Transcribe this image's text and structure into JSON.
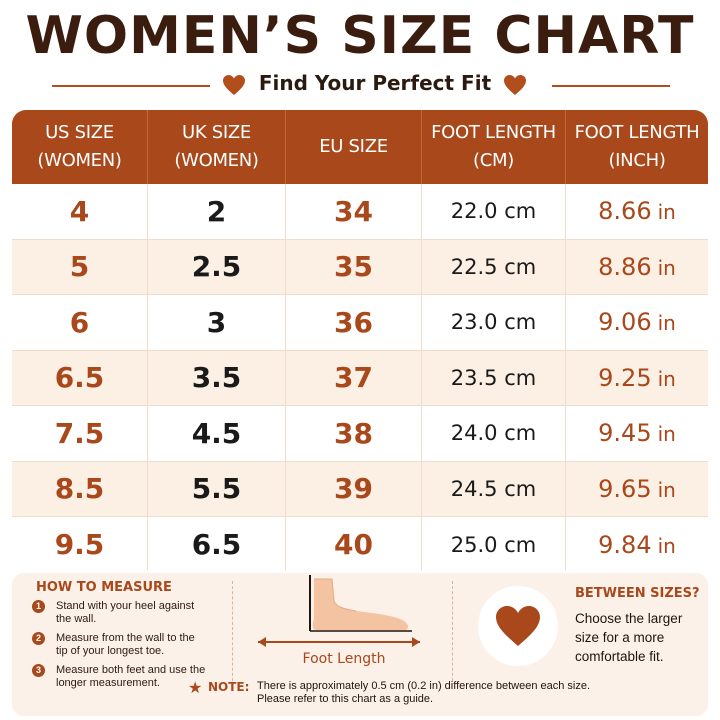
{
  "title": "WOMEN’S SIZE CHART",
  "subtitle": "Find Your Perfect Fit",
  "colors": {
    "accent": "#a8481b",
    "dark": "#3a1d0e",
    "row_alt": "#fcefe4",
    "panel": "#fcf1e8"
  },
  "table": {
    "headers": [
      "US SIZE\n(WOMEN)",
      "UK SIZE\n(WOMEN)",
      "EU SIZE",
      "FOOT LENGTH\n(CM)",
      "FOOT LENGTH\n(INCH)"
    ],
    "rows": [
      {
        "us": "4",
        "uk": "2",
        "eu": "34",
        "cm": "22.0 cm",
        "inch": "8.66",
        "inch_unit": "in"
      },
      {
        "us": "5",
        "uk": "2.5",
        "eu": "35",
        "cm": "22.5 cm",
        "inch": "8.86",
        "inch_unit": "in"
      },
      {
        "us": "6",
        "uk": "3",
        "eu": "36",
        "cm": "23.0 cm",
        "inch": "9.06",
        "inch_unit": "in"
      },
      {
        "us": "6.5",
        "uk": "3.5",
        "eu": "37",
        "cm": "23.5 cm",
        "inch": "9.25",
        "inch_unit": "in"
      },
      {
        "us": "7.5",
        "uk": "4.5",
        "eu": "38",
        "cm": "24.0 cm",
        "inch": "9.45",
        "inch_unit": "in"
      },
      {
        "us": "8.5",
        "uk": "5.5",
        "eu": "39",
        "cm": "24.5 cm",
        "inch": "9.65",
        "inch_unit": "in"
      },
      {
        "us": "9.5",
        "uk": "6.5",
        "eu": "40",
        "cm": "25.0 cm",
        "inch": "9.84",
        "inch_unit": "in"
      }
    ]
  },
  "how_to_measure": {
    "title": "HOW TO MEASURE",
    "steps": [
      {
        "num": "1",
        "text": "Stand with your heel against the wall."
      },
      {
        "num": "2",
        "text": "Measure from the wall to the tip of your longest toe."
      },
      {
        "num": "3",
        "text": "Measure both feet and use the longer measurement."
      }
    ]
  },
  "foot_label": "Foot Length",
  "between_sizes": {
    "title": "BETWEEN SIZES?",
    "text": "Choose the larger size for a more comfortable fit."
  },
  "note": {
    "label": "NOTE:",
    "text": "There is approximately 0.5 cm (0.2 in) difference between each size. Please refer to this chart as a guide."
  },
  "icons": [
    "heart-icon",
    "foot-icon",
    "star-icon",
    "double-arrow-icon"
  ]
}
